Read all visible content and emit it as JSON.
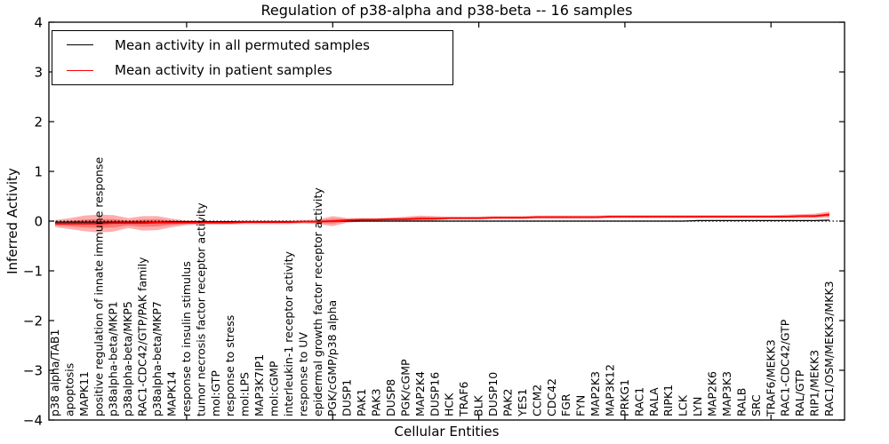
{
  "chart_data": {
    "type": "line",
    "title": "Regulation of p38-alpha and p38-beta -- 16 samples",
    "xlabel": "Cellular Entities",
    "ylabel": "Inferred Activity",
    "ylim": [
      -4,
      4
    ],
    "ytick_labels": [
      "4",
      "3",
      "2",
      "1",
      "0",
      "−1",
      "−2",
      "−3",
      "−4"
    ],
    "ytick_values": [
      4,
      3,
      2,
      1,
      0,
      -1,
      -2,
      -3,
      -4
    ],
    "xticks_major_positions": [
      10,
      20,
      30,
      40,
      50
    ],
    "grid": false,
    "zero_line_style": "dotted",
    "legend_position": "upper left",
    "band_color": "#ff0000",
    "band_alpha": 0.32,
    "frame_color": "#000000",
    "categories": [
      "p38 alpha/TAB1",
      "apoptosis",
      "MAPK11",
      "positive regulation of innate immune response",
      "p38alpha-beta/MKP1",
      "p38alpha-beta/MKP5",
      "RAC1-CDC42/GTP/PAK family",
      "p38alpha-beta/MKP7",
      "MAPK14",
      "response to insulin stimulus",
      "tumor necrosis factor receptor activity",
      "mol:GTP",
      "response to stress",
      "mol:LPS",
      "MAP3K7IP1",
      "mol:cGMP",
      "interleukin-1 receptor activity",
      "response to UV",
      "epidermal growth factor receptor activity",
      "PGK/cGMP/p38 alpha",
      "DUSP1",
      "PAK1",
      "PAK3",
      "DUSP8",
      "PGK/cGMP",
      "MAP2K4",
      "DUSP16",
      "HCK",
      "TRAF6",
      "BLK",
      "DUSP10",
      "PAK2",
      "YES1",
      "CCM2",
      "CDC42",
      "FGR",
      "FYN",
      "MAP2K3",
      "MAP3K12",
      "PRKG1",
      "RAC1",
      "RALA",
      "RIPK1",
      "LCK",
      "LYN",
      "MAP2K6",
      "MAP3K3",
      "RALB",
      "SRC",
      "TRAF6/MEKK3",
      "RAC1-CDC42/GTP",
      "RAL/GTP",
      "RIP1/MEKK3",
      "RAC1/OSM/MEKK3/MKK3"
    ],
    "series": [
      {
        "name": "Mean activity in all permuted samples",
        "color": "#000000",
        "values": [
          -0.02,
          -0.02,
          -0.02,
          -0.02,
          -0.02,
          -0.02,
          -0.02,
          -0.02,
          -0.01,
          -0.01,
          -0.01,
          -0.01,
          -0.01,
          -0.01,
          -0.01,
          -0.01,
          -0.01,
          -0.01,
          -0.01,
          0,
          0,
          0,
          0,
          0,
          0,
          0,
          0,
          0,
          0,
          0,
          0,
          0,
          0,
          0,
          0,
          0,
          0,
          0,
          0,
          0,
          0,
          0,
          0,
          0,
          0.01,
          0.01,
          0.01,
          0.01,
          0.01,
          0.01,
          0.01,
          0.01,
          0.01,
          0.02
        ]
      },
      {
        "name": "Mean activity in patient samples",
        "color": "#ff0000",
        "values": [
          -0.05,
          -0.05,
          -0.05,
          -0.05,
          -0.04,
          -0.04,
          -0.04,
          -0.03,
          -0.03,
          -0.03,
          -0.03,
          -0.03,
          -0.03,
          -0.02,
          -0.02,
          -0.02,
          -0.02,
          -0.01,
          -0.01,
          0,
          0.02,
          0.03,
          0.03,
          0.04,
          0.04,
          0.05,
          0.05,
          0.06,
          0.06,
          0.06,
          0.07,
          0.07,
          0.07,
          0.08,
          0.08,
          0.08,
          0.08,
          0.08,
          0.09,
          0.09,
          0.09,
          0.09,
          0.09,
          0.09,
          0.09,
          0.09,
          0.09,
          0.09,
          0.09,
          0.09,
          0.09,
          0.1,
          0.1,
          0.13
        ],
        "band_upper": [
          0.02,
          0.06,
          0.11,
          0.13,
          0.12,
          0.06,
          0.1,
          0.1,
          0.05,
          0.01,
          0.01,
          0.0,
          0.0,
          0.01,
          0.01,
          0.01,
          0.01,
          0.02,
          0.03,
          0.1,
          0.06,
          0.06,
          0.06,
          0.07,
          0.09,
          0.11,
          0.1,
          0.09,
          0.09,
          0.09,
          0.1,
          0.1,
          0.1,
          0.11,
          0.11,
          0.11,
          0.11,
          0.11,
          0.12,
          0.12,
          0.12,
          0.12,
          0.12,
          0.12,
          0.12,
          0.12,
          0.12,
          0.12,
          0.12,
          0.12,
          0.13,
          0.14,
          0.15,
          0.19
        ],
        "band_lower": [
          -0.12,
          -0.16,
          -0.2,
          -0.23,
          -0.21,
          -0.14,
          -0.19,
          -0.18,
          -0.12,
          -0.08,
          -0.07,
          -0.07,
          -0.07,
          -0.06,
          -0.06,
          -0.06,
          -0.06,
          -0.05,
          -0.06,
          -0.1,
          -0.03,
          -0.01,
          0.0,
          0.01,
          0.0,
          0.0,
          0.01,
          0.03,
          0.03,
          0.03,
          0.04,
          0.04,
          0.04,
          0.05,
          0.05,
          0.05,
          0.05,
          0.05,
          0.06,
          0.06,
          0.06,
          0.06,
          0.06,
          0.06,
          0.06,
          0.06,
          0.06,
          0.06,
          0.06,
          0.06,
          0.06,
          0.06,
          0.06,
          0.07
        ]
      }
    ]
  }
}
